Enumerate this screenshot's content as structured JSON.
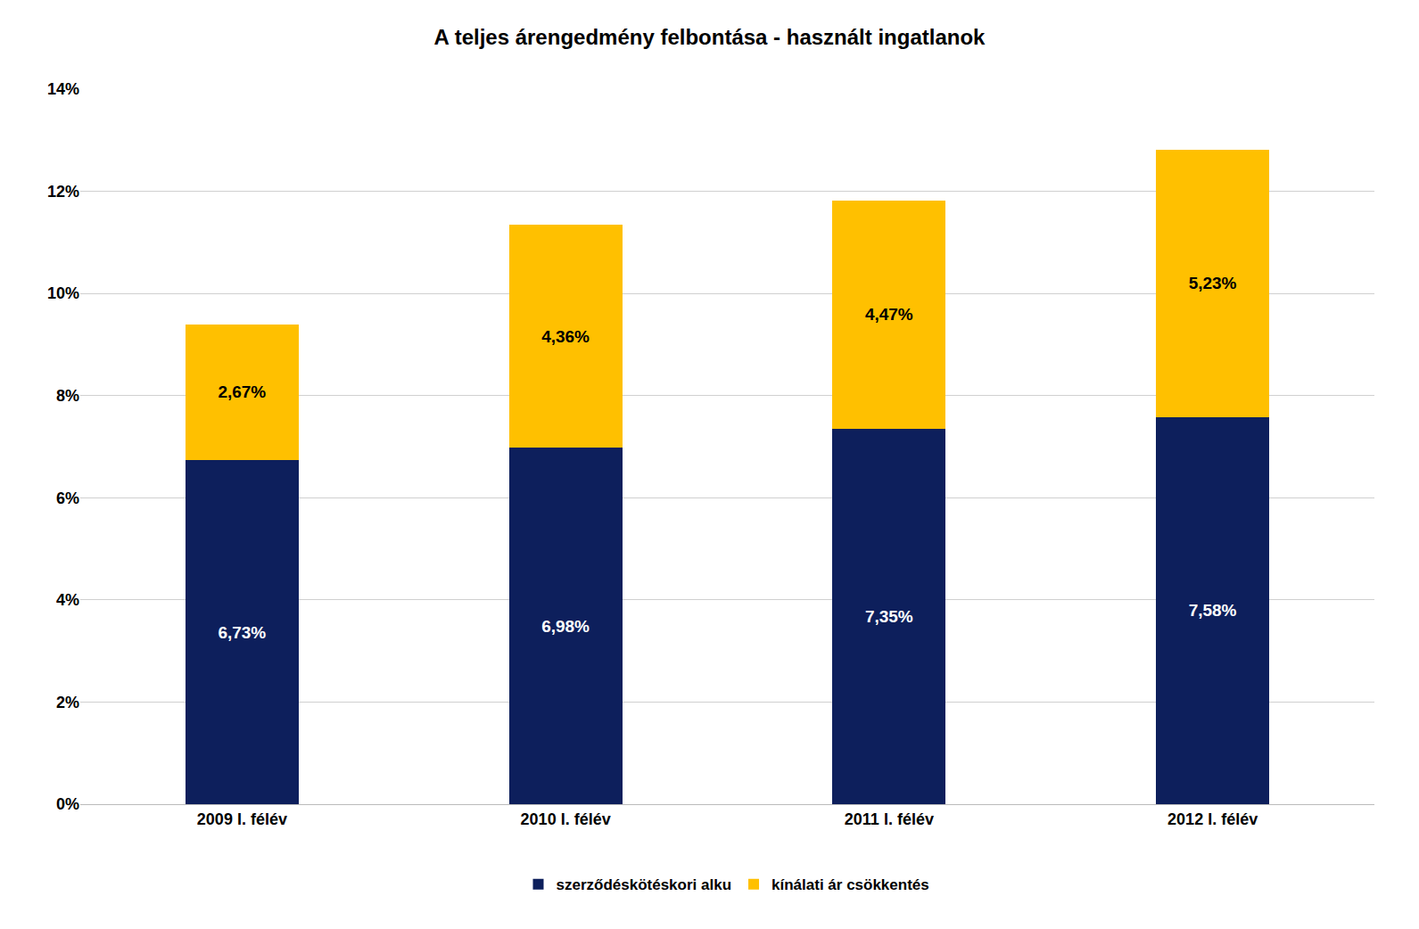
{
  "chart_data": {
    "type": "bar",
    "title": "A teljes árengedmény felbontása - használt ingatlanok",
    "categories": [
      "2009 I. félév",
      "2010 I. félév",
      "2011 I. félév",
      "2012 I. félév"
    ],
    "series": [
      {
        "name": "szerződéskötéskori alku",
        "color": "#0D1F5C",
        "values": [
          6.73,
          6.98,
          7.35,
          7.58
        ],
        "value_labels": [
          "6,73%",
          "6,98%",
          "7,35%",
          "7,58%"
        ]
      },
      {
        "name": "kínálati ár csökkentés",
        "color": "#FFC000",
        "values": [
          2.67,
          4.36,
          4.47,
          5.23
        ],
        "value_labels": [
          "2,67%",
          "4,36%",
          "4,47%",
          "5,23%"
        ]
      }
    ],
    "stacked": true,
    "data_labels": true,
    "ylim": [
      0,
      14
    ],
    "yticks": [
      {
        "value": 0,
        "label": "0%"
      },
      {
        "value": 2,
        "label": "2%"
      },
      {
        "value": 4,
        "label": "4%"
      },
      {
        "value": 6,
        "label": "6%"
      },
      {
        "value": 8,
        "label": "8%"
      },
      {
        "value": 10,
        "label": "10%"
      },
      {
        "value": 12,
        "label": "12%"
      },
      {
        "value": 14,
        "label": "14%"
      }
    ],
    "grid": true,
    "legend": "bottom"
  }
}
